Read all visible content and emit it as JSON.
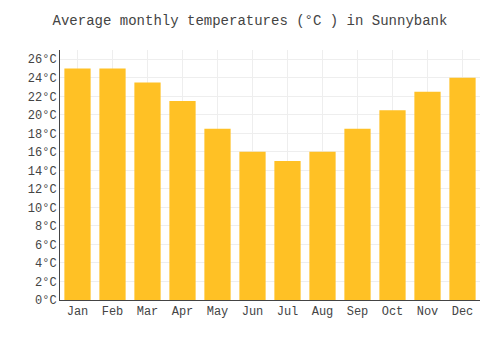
{
  "chart_data": {
    "type": "bar",
    "title": "Average monthly temperatures (°C ) in Sunnybank",
    "categories": [
      "Jan",
      "Feb",
      "Mar",
      "Apr",
      "May",
      "Jun",
      "Jul",
      "Aug",
      "Sep",
      "Oct",
      "Nov",
      "Dec"
    ],
    "values": [
      25.0,
      25.0,
      23.5,
      21.5,
      18.5,
      16.0,
      15.0,
      16.0,
      18.5,
      20.5,
      22.5,
      24.0
    ],
    "color": "#FFC125",
    "ylim": [
      0,
      27
    ],
    "yticks": [
      {
        "value": 0,
        "label": "0°C"
      },
      {
        "value": 2,
        "label": "2°C"
      },
      {
        "value": 4,
        "label": "4°C"
      },
      {
        "value": 6,
        "label": "6°C"
      },
      {
        "value": 8,
        "label": "8°C"
      },
      {
        "value": 10,
        "label": "10°C"
      },
      {
        "value": 12,
        "label": "12°C"
      },
      {
        "value": 14,
        "label": "14°C"
      },
      {
        "value": 16,
        "label": "16°C"
      },
      {
        "value": 18,
        "label": "18°C"
      },
      {
        "value": 20,
        "label": "20°C"
      },
      {
        "value": 22,
        "label": "22°C"
      },
      {
        "value": 24,
        "label": "24°C"
      },
      {
        "value": 26,
        "label": "26°C"
      }
    ],
    "grid": true
  }
}
